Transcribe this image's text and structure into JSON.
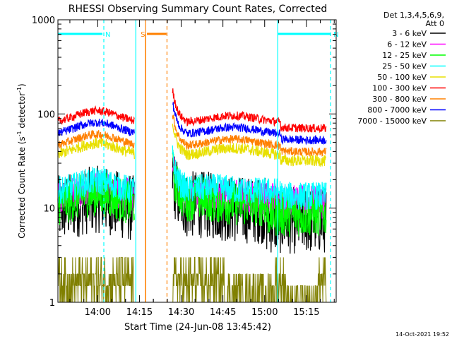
{
  "chart_data": {
    "type": "line",
    "title": "RHESSI Observing Summary Count Rates, Corrected",
    "xlabel": "Start Time (24-Jun-08 13:45:42)",
    "ylabel_main": "Corrected Count Rate (s",
    "ylabel_sup1": "-1",
    "ylabel_mid": " detector",
    "ylabel_sup2": "-1",
    "ylabel_end": ")",
    "y_scale": "log",
    "xlim_minutes": [
      0,
      100
    ],
    "ylim": [
      1,
      1000
    ],
    "xticks": [
      {
        "label": "14:00",
        "minute": 14.3
      },
      {
        "label": "14:15",
        "minute": 29.3
      },
      {
        "label": "14:30",
        "minute": 44.3
      },
      {
        "label": "14:45",
        "minute": 59.3
      },
      {
        "label": "15:00",
        "minute": 74.3
      },
      {
        "label": "15:15",
        "minute": 89.3
      }
    ],
    "yticks": [
      {
        "label": "1",
        "value": 1
      },
      {
        "label": "10",
        "value": 10
      },
      {
        "label": "100",
        "value": 100
      },
      {
        "label": "1000",
        "value": 1000
      }
    ],
    "legend_header": [
      "Det 1,3,4,5,6,9,",
      "Att 0"
    ],
    "legend_position": "right",
    "series": [
      {
        "name": "3 - 6 keV",
        "color": "#000000",
        "shape": "low",
        "base": 9.5,
        "noise": 0.12
      },
      {
        "name": "6 - 12 keV",
        "color": "#ff00ff",
        "shape": "mid",
        "base": 13,
        "noise": 0.06
      },
      {
        "name": "12 - 25 keV",
        "color": "#00ff00",
        "shape": "low",
        "base": 11,
        "noise": 0.08
      },
      {
        "name": "25 - 50 keV",
        "color": "#00ffff",
        "shape": "mid",
        "base": 15,
        "noise": 0.05
      },
      {
        "name": "50 - 100 keV",
        "color": "#e8e000",
        "shape": "arch",
        "base": 36,
        "noise": 0.02
      },
      {
        "name": "100 - 300 keV",
        "color": "#ff0000",
        "shape": "arch",
        "base": 80,
        "noise": 0.015
      },
      {
        "name": "300 - 800 keV",
        "color": "#ff8000",
        "shape": "arch",
        "base": 45,
        "noise": 0.015
      },
      {
        "name": "800 - 7000 keV",
        "color": "#0000ff",
        "shape": "arch",
        "base": 60,
        "noise": 0.015
      },
      {
        "name": "7000 - 15000 keV",
        "color": "#808000",
        "shape": "steps",
        "base": 1.5,
        "noise": 0
      }
    ],
    "segments_minutes": [
      [
        0,
        27.5
      ],
      [
        41.2,
        96.5
      ]
    ],
    "markers": [
      {
        "label": "N",
        "color": "#00ffff",
        "bar": [
          0,
          16
        ],
        "solid": [],
        "dashed": [
          16.5
        ]
      },
      {
        "label": "N",
        "color": "#00ffff",
        "bar": [
          79,
          98
        ],
        "solid": [
          79
        ],
        "dashed": [
          98
        ]
      },
      {
        "label": "",
        "color": "#00ffff",
        "bar": [],
        "solid": [
          28
        ],
        "dashed": []
      },
      {
        "label": "S",
        "color": "#ff8000",
        "bar": [
          32,
          39
        ],
        "solid": [
          31.5
        ],
        "dashed": [
          39.2
        ]
      }
    ],
    "eclipse_edges": [
      0,
      28
    ],
    "footer_date": "14-Oct-2021 19:52"
  }
}
